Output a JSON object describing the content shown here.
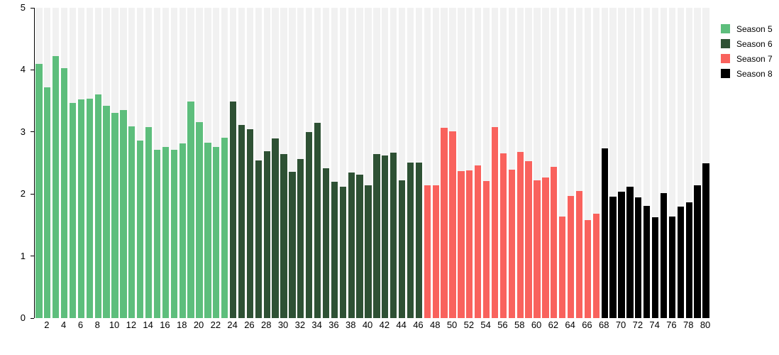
{
  "chart_data": {
    "type": "bar",
    "title": "",
    "xlabel": "",
    "ylabel": "",
    "ylim": [
      0,
      5
    ],
    "y_ticks": [
      "0",
      "1",
      "2",
      "3",
      "4",
      "5"
    ],
    "x_label_every": 2,
    "total_episodes": 80,
    "grid": "off",
    "background_stripe_color": "#f1f1f1",
    "legend_position": "top-right",
    "series": [
      {
        "name": "Season 5",
        "color": "#5dbe7c",
        "start_episode": 1,
        "values": [
          4.1,
          3.72,
          4.22,
          4.03,
          3.47,
          3.52,
          3.54,
          3.6,
          3.42,
          3.31,
          3.35,
          3.09,
          2.86,
          3.08,
          2.71,
          2.76,
          2.71,
          2.82,
          3.49,
          3.16,
          2.83,
          2.76,
          2.91
        ]
      },
      {
        "name": "Season 6",
        "color": "#2e5134",
        "start_episode": 24,
        "values": [
          3.49,
          3.11,
          3.04,
          2.54,
          2.69,
          2.9,
          2.64,
          2.36,
          2.56,
          3.0,
          3.15,
          2.41,
          2.2,
          2.12,
          2.35,
          2.31,
          2.14,
          2.64,
          2.62,
          2.67,
          2.22,
          2.51,
          2.51
        ]
      },
      {
        "name": "Season 7",
        "color": "#f9625d",
        "start_episode": 47,
        "values": [
          2.14,
          2.14,
          3.07,
          3.01,
          2.37,
          2.38,
          2.46,
          2.21,
          3.08,
          2.66,
          2.39,
          2.68,
          2.53,
          2.22,
          2.26,
          2.44,
          1.64,
          1.97,
          2.05,
          1.58,
          1.68
        ]
      },
      {
        "name": "Season 8",
        "color": "#000000",
        "start_episode": 68,
        "values": [
          2.74,
          1.96,
          2.04,
          2.12,
          1.95,
          1.81,
          1.62,
          2.01,
          1.64,
          1.8,
          1.86,
          2.14,
          2.5
        ]
      }
    ]
  }
}
